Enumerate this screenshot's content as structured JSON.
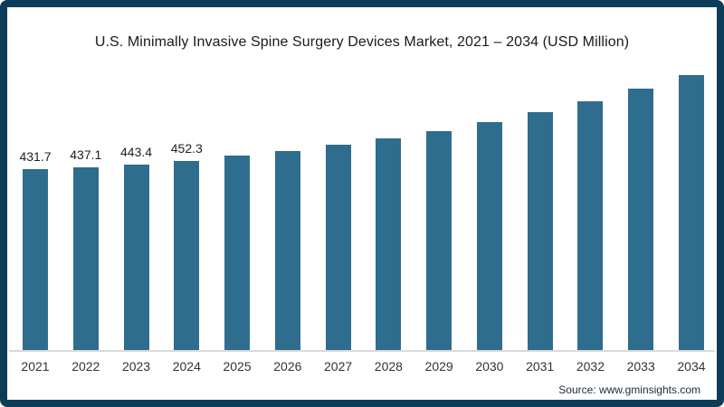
{
  "frame": {
    "border_color": "#0d3c59",
    "background": "#ffffff"
  },
  "chart_data": {
    "type": "bar",
    "title": "U.S. Minimally Invasive Spine Surgery Devices Market, 2021 – 2034 (USD Million)",
    "categories": [
      "2021",
      "2022",
      "2023",
      "2024",
      "2025",
      "2026",
      "2027",
      "2028",
      "2029",
      "2030",
      "2031",
      "2032",
      "2033",
      "2034"
    ],
    "values": [
      431.7,
      437.1,
      443.4,
      452.3,
      464,
      475,
      491,
      505,
      523,
      545,
      569,
      594,
      624,
      656
    ],
    "data_labels": [
      "431.7",
      "437.1",
      "443.4",
      "452.3",
      "",
      "",
      "",
      "",
      "",
      "",
      "",
      "",
      "",
      ""
    ],
    "xlabel": "",
    "ylabel": "",
    "ylim": [
      0,
      710
    ],
    "grid": false,
    "legend": false,
    "bar_color": "#2f6d8e",
    "axis_line_color": "#d9d9d9"
  },
  "source": {
    "text": "Source: www.gminsights.com"
  }
}
